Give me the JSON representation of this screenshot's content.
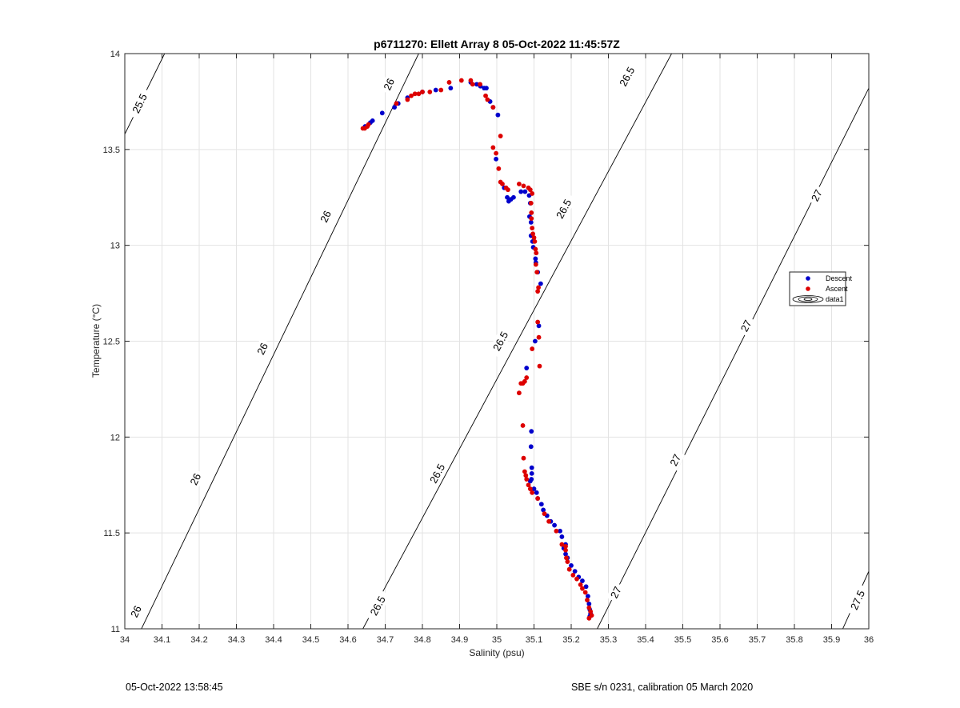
{
  "chart_data": {
    "type": "scatter",
    "title": "p6711270: Ellett Array 8 05-Oct-2022 11:45:57Z",
    "xlabel": "Salinity (psu)",
    "ylabel": "Temperature (°C)",
    "xlim": [
      34,
      36
    ],
    "ylim": [
      11,
      14
    ],
    "xticks": [
      "34",
      "34.1",
      "34.2",
      "34.3",
      "34.4",
      "34.5",
      "34.6",
      "34.7",
      "34.8",
      "34.9",
      "35",
      "35.1",
      "35.2",
      "35.3",
      "35.4",
      "35.5",
      "35.6",
      "35.7",
      "35.8",
      "35.9",
      "36"
    ],
    "yticks": [
      "11",
      "11.5",
      "12",
      "12.5",
      "13",
      "13.5",
      "14"
    ],
    "grid": true,
    "legend_position": "right",
    "legend": [
      "Descent",
      "Ascent",
      "data1"
    ],
    "series": [
      {
        "name": "Descent",
        "color": "#0000cc",
        "points": [
          [
            34.646,
            13.62
          ],
          [
            34.66,
            13.64
          ],
          [
            34.666,
            13.65
          ],
          [
            34.692,
            13.69
          ],
          [
            34.725,
            13.72
          ],
          [
            34.735,
            13.74
          ],
          [
            34.76,
            13.77
          ],
          [
            34.8,
            13.8
          ],
          [
            34.836,
            13.81
          ],
          [
            34.876,
            13.82
          ],
          [
            34.93,
            13.85
          ],
          [
            34.946,
            13.84
          ],
          [
            34.956,
            13.83
          ],
          [
            34.966,
            13.82
          ],
          [
            34.972,
            13.82
          ],
          [
            34.982,
            13.75
          ],
          [
            34.99,
            13.72
          ],
          [
            35.003,
            13.68
          ],
          [
            34.998,
            13.45
          ],
          [
            35.02,
            13.3
          ],
          [
            35.028,
            13.25
          ],
          [
            35.032,
            13.23
          ],
          [
            35.038,
            13.24
          ],
          [
            35.045,
            13.25
          ],
          [
            35.065,
            13.28
          ],
          [
            35.076,
            13.28
          ],
          [
            35.087,
            13.26
          ],
          [
            35.09,
            13.22
          ],
          [
            35.088,
            13.15
          ],
          [
            35.092,
            13.12
          ],
          [
            35.092,
            13.05
          ],
          [
            35.096,
            13.02
          ],
          [
            35.098,
            12.99
          ],
          [
            35.104,
            12.93
          ],
          [
            35.105,
            12.91
          ],
          [
            35.11,
            12.86
          ],
          [
            35.118,
            12.8
          ],
          [
            35.113,
            12.58
          ],
          [
            35.103,
            12.5
          ],
          [
            35.08,
            12.36
          ],
          [
            35.093,
            12.03
          ],
          [
            35.092,
            11.95
          ],
          [
            35.094,
            11.84
          ],
          [
            35.094,
            11.81
          ],
          [
            35.093,
            11.78
          ],
          [
            35.09,
            11.77
          ],
          [
            35.1,
            11.73
          ],
          [
            35.107,
            11.71
          ],
          [
            35.11,
            11.68
          ],
          [
            35.12,
            11.65
          ],
          [
            35.125,
            11.62
          ],
          [
            35.135,
            11.59
          ],
          [
            35.145,
            11.56
          ],
          [
            35.155,
            11.54
          ],
          [
            35.17,
            11.51
          ],
          [
            35.175,
            11.48
          ],
          [
            35.185,
            11.44
          ],
          [
            35.18,
            11.42
          ],
          [
            35.185,
            11.39
          ],
          [
            35.19,
            11.37
          ],
          [
            35.2,
            11.33
          ],
          [
            35.21,
            11.3
          ],
          [
            35.22,
            11.27
          ],
          [
            35.23,
            11.25
          ],
          [
            35.24,
            11.22
          ],
          [
            35.245,
            11.17
          ],
          [
            35.248,
            11.13
          ],
          [
            35.25,
            11.1
          ],
          [
            35.252,
            11.08
          ],
          [
            35.25,
            11.065
          ]
        ]
      },
      {
        "name": "Ascent",
        "color": "#dd0000",
        "points": [
          [
            34.64,
            13.61
          ],
          [
            34.645,
            13.61
          ],
          [
            34.652,
            13.62
          ],
          [
            34.655,
            13.63
          ],
          [
            34.73,
            13.74
          ],
          [
            34.76,
            13.76
          ],
          [
            34.77,
            13.78
          ],
          [
            34.78,
            13.79
          ],
          [
            34.79,
            13.79
          ],
          [
            34.8,
            13.8
          ],
          [
            34.82,
            13.8
          ],
          [
            34.85,
            13.81
          ],
          [
            34.872,
            13.85
          ],
          [
            34.905,
            13.86
          ],
          [
            34.93,
            13.86
          ],
          [
            34.935,
            13.84
          ],
          [
            34.955,
            13.84
          ],
          [
            34.97,
            13.78
          ],
          [
            34.975,
            13.76
          ],
          [
            34.99,
            13.72
          ],
          [
            35.01,
            13.57
          ],
          [
            34.99,
            13.51
          ],
          [
            34.998,
            13.48
          ],
          [
            35.005,
            13.4
          ],
          [
            35.01,
            13.33
          ],
          [
            35.015,
            13.32
          ],
          [
            35.025,
            13.3
          ],
          [
            35.03,
            13.29
          ],
          [
            35.06,
            13.32
          ],
          [
            35.072,
            13.31
          ],
          [
            35.085,
            13.3
          ],
          [
            35.09,
            13.29
          ],
          [
            35.095,
            13.27
          ],
          [
            35.092,
            13.22
          ],
          [
            35.093,
            13.17
          ],
          [
            35.093,
            13.14
          ],
          [
            35.095,
            13.09
          ],
          [
            35.097,
            13.06
          ],
          [
            35.1,
            13.04
          ],
          [
            35.102,
            13.02
          ],
          [
            35.104,
            12.98
          ],
          [
            35.106,
            12.96
          ],
          [
            35.105,
            12.9
          ],
          [
            35.108,
            12.86
          ],
          [
            35.112,
            12.78
          ],
          [
            35.11,
            12.76
          ],
          [
            35.11,
            12.6
          ],
          [
            35.113,
            12.52
          ],
          [
            35.095,
            12.46
          ],
          [
            35.115,
            12.37
          ],
          [
            35.08,
            12.31
          ],
          [
            35.075,
            12.29
          ],
          [
            35.07,
            12.28
          ],
          [
            35.065,
            12.28
          ],
          [
            35.06,
            12.23
          ],
          [
            35.07,
            12.06
          ],
          [
            35.072,
            11.89
          ],
          [
            35.075,
            11.82
          ],
          [
            35.078,
            11.8
          ],
          [
            35.08,
            11.78
          ],
          [
            35.085,
            11.75
          ],
          [
            35.09,
            11.73
          ],
          [
            35.095,
            11.71
          ],
          [
            35.11,
            11.68
          ],
          [
            35.128,
            11.6
          ],
          [
            35.14,
            11.56
          ],
          [
            35.16,
            11.51
          ],
          [
            35.175,
            11.44
          ],
          [
            35.185,
            11.43
          ],
          [
            35.185,
            11.41
          ],
          [
            35.187,
            11.37
          ],
          [
            35.19,
            11.35
          ],
          [
            35.195,
            11.31
          ],
          [
            35.205,
            11.28
          ],
          [
            35.215,
            11.26
          ],
          [
            35.225,
            11.23
          ],
          [
            35.23,
            11.21
          ],
          [
            35.238,
            11.19
          ],
          [
            35.243,
            11.15
          ],
          [
            35.248,
            11.11
          ],
          [
            35.252,
            11.09
          ],
          [
            35.255,
            11.07
          ],
          [
            35.248,
            11.055
          ]
        ]
      }
    ],
    "contours": [
      {
        "value": "25.5",
        "start": [
          34.0,
          13.58
        ],
        "end": [
          34.107,
          14.0
        ],
        "labels": [
          [
            34.04,
            13.74
          ]
        ]
      },
      {
        "value": "26",
        "start": [
          34.0,
          10.82
        ],
        "end": [
          34.79,
          14.0
        ],
        "labels": [
          [
            34.03,
            11.09
          ],
          [
            34.19,
            11.78
          ],
          [
            34.37,
            12.46
          ],
          [
            34.54,
            13.15
          ],
          [
            34.71,
            13.84
          ]
        ]
      },
      {
        "value": "26.5",
        "start": [
          34.64,
          11.0
        ],
        "end": [
          35.47,
          14.0
        ],
        "labels": [
          [
            34.68,
            11.12
          ],
          [
            34.84,
            11.81
          ],
          [
            35.01,
            12.5
          ],
          [
            35.18,
            13.19
          ],
          [
            35.35,
            13.88
          ]
        ]
      },
      {
        "value": "27",
        "start": [
          35.27,
          11.0
        ],
        "end": [
          36.0,
          13.82
        ],
        "labels": [
          [
            35.32,
            11.19
          ],
          [
            35.48,
            11.88
          ],
          [
            35.67,
            12.58
          ],
          [
            35.86,
            13.26
          ]
        ]
      },
      {
        "value": "27.5",
        "start": [
          35.93,
          11.0
        ],
        "end": [
          36.0,
          11.3
        ],
        "labels": [
          [
            35.97,
            11.15
          ]
        ]
      }
    ]
  },
  "footer": {
    "left": "05-Oct-2022 13:58:45",
    "right": "SBE s/n 0231, calibration 05 March 2020"
  }
}
